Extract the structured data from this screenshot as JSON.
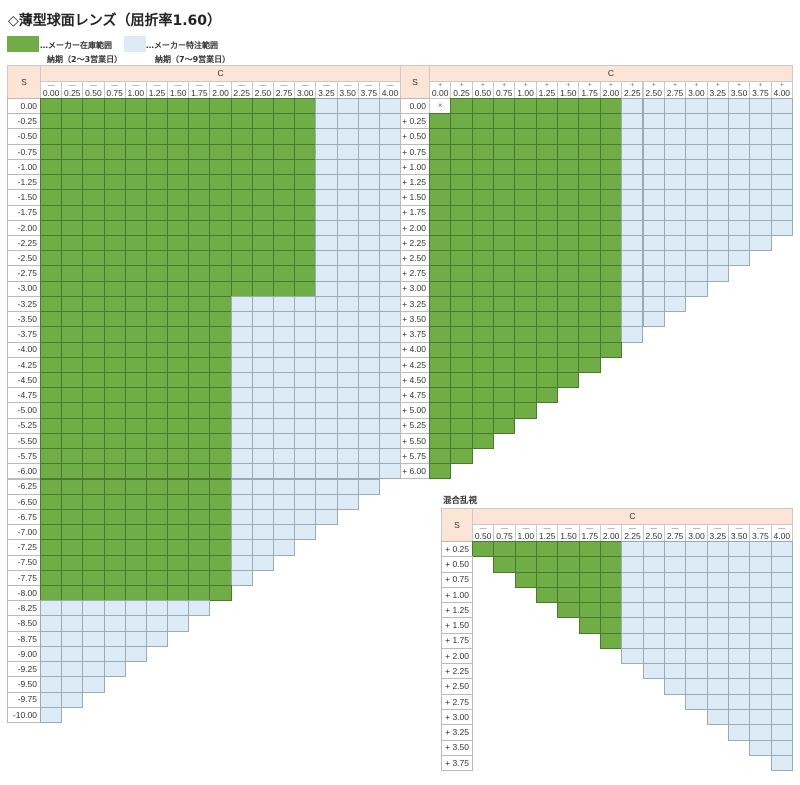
{
  "title": "◇薄型球面レンズ（屈折率1.60）",
  "legend": {
    "stock": {
      "label": "…メーカー在庫範囲",
      "delivery": "納期（2〜3営業日）",
      "color": "#70ad47"
    },
    "order": {
      "label": "…メーカー特注範囲",
      "delivery": "納期（7〜9営業日）",
      "color": "#ddebf7"
    }
  },
  "cell_key": {
    "G": "stock",
    "L": "special-order",
    "X": "×",
    "-": "not available"
  },
  "tables": [
    {
      "id": "minus",
      "s_label": "S",
      "c_label": "C",
      "x_mark": "×",
      "col_sign": "—",
      "cols": [
        "0.00",
        "0.25",
        "0.50",
        "0.75",
        "1.00",
        "1.25",
        "1.50",
        "1.75",
        "2.00",
        "2.25",
        "2.50",
        "2.75",
        "3.00",
        "3.25",
        "3.50",
        "3.75",
        "4.00"
      ],
      "rows": [
        "0.00",
        "-0.25",
        "-0.50",
        "-0.75",
        "-1.00",
        "-1.25",
        "-1.50",
        "-1.75",
        "-2.00",
        "-2.25",
        "-2.50",
        "-2.75",
        "-3.00",
        "-3.25",
        "-3.50",
        "-3.75",
        "-4.00",
        "-4.25",
        "-4.50",
        "-4.75",
        "-5.00",
        "-5.25",
        "-5.50",
        "-5.75",
        "-6.00",
        "-6.25",
        "-6.50",
        "-6.75",
        "-7.00",
        "-7.25",
        "-7.50",
        "-7.75",
        "-8.00",
        "-8.25",
        "-8.50",
        "-8.75",
        "-9.00",
        "-9.25",
        "-9.50",
        "-9.75",
        "-10.00"
      ],
      "cells": [
        "GGGGGGGGGGGGGLLLL",
        "GGGGGGGGGGGGGLLLL",
        "GGGGGGGGGGGGGLLLL",
        "GGGGGGGGGGGGGLLLL",
        "GGGGGGGGGGGGGLLLL",
        "GGGGGGGGGGGGGLLLL",
        "GGGGGGGGGGGGGLLLL",
        "GGGGGGGGGGGGGLLLL",
        "GGGGGGGGGGGGGLLLL",
        "GGGGGGGGGGGGGLLLL",
        "GGGGGGGGGGGGGLLLL",
        "GGGGGGGGGGGGGLLLL",
        "GGGGGGGGGGGGGLLLL",
        "GGGGGGGGGLLLLLLLL",
        "GGGGGGGGGLLLLLLLL",
        "GGGGGGGGGLLLLLLLL",
        "GGGGGGGGGLLLLLLLL",
        "GGGGGGGGGLLLLLLLL",
        "GGGGGGGGGLLLLLLLL",
        "GGGGGGGGGLLLLLLLL",
        "GGGGGGGGGLLLLLLLL",
        "GGGGGGGGGLLLLLLLL",
        "GGGGGGGGGLLLLLLLL",
        "GGGGGGGGGLLLLLLLL",
        "GGGGGGGGGLLLLLLLL",
        "GGGGGGGGGLLLLLLL-",
        "GGGGGGGGGLLLLLL--",
        "GGGGGGGGGLLLLL---",
        "GGGGGGGGGLLLL----",
        "GGGGGGGGGLLL-----",
        "GGGGGGGGGLL------",
        "GGGGGGGGGL-------",
        "GGGGGGGGG--------",
        "LLLLLLLL---------",
        "LLLLLLL----------",
        "LLLLLL-----------",
        "LLLLL------------",
        "LLLL-------------",
        "LLL--------------",
        "LL---------------",
        "L----------------"
      ]
    },
    {
      "id": "plus",
      "s_label": "S",
      "c_label": "C",
      "x_mark": "×",
      "col_sign": "+",
      "cols": [
        "0.00",
        "0.25",
        "0.50",
        "0.75",
        "1.00",
        "1.25",
        "1.50",
        "1.75",
        "2.00",
        "2.25",
        "2.50",
        "2.75",
        "3.00",
        "3.25",
        "3.50",
        "3.75",
        "4.00"
      ],
      "rows": [
        "0.00",
        "+ 0.25",
        "+ 0.50",
        "+ 0.75",
        "+ 1.00",
        "+ 1.25",
        "+ 1.50",
        "+ 1.75",
        "+ 2.00",
        "+ 2.25",
        "+ 2.50",
        "+ 2.75",
        "+ 3.00",
        "+ 3.25",
        "+ 3.50",
        "+ 3.75",
        "+ 4.00",
        "+ 4.25",
        "+ 4.50",
        "+ 4.75",
        "+ 5.00",
        "+ 5.25",
        "+ 5.50",
        "+ 5.75",
        "+ 6.00"
      ],
      "cells": [
        "XGGGGGGGGLLLLLLLL",
        "GGGGGGGGGLLLLLLLL",
        "GGGGGGGGGLLLLLLLL",
        "GGGGGGGGGLLLLLLLL",
        "GGGGGGGGGLLLLLLLL",
        "GGGGGGGGGLLLLLLLL",
        "GGGGGGGGGLLLLLLLL",
        "GGGGGGGGGLLLLLLLL",
        "GGGGGGGGGLLLLLLLL",
        "GGGGGGGGGLLLLLLL-",
        "GGGGGGGGGLLLLLL--",
        "GGGGGGGGGLLLLL---",
        "GGGGGGGGGLLLL----",
        "GGGGGGGGGLLL-----",
        "GGGGGGGGGLL------",
        "GGGGGGGGGL-------",
        "GGGGGGGGG--------",
        "GGGGGGGG---------",
        "GGGGGGG----------",
        "GGGGGG-----------",
        "GGGGG------------",
        "GGGG-------------",
        "GGG--------------",
        "GG---------------",
        "G----------------"
      ]
    },
    {
      "id": "mixed",
      "heading": "混合乱視",
      "s_label": "S",
      "c_label": "C",
      "x_mark": "×",
      "col_sign": "—",
      "cols": [
        "0.50",
        "0.75",
        "1.00",
        "1.25",
        "1.50",
        "1.75",
        "2.00",
        "2.25",
        "2.50",
        "2.75",
        "3.00",
        "3.25",
        "3.50",
        "3.75",
        "4.00"
      ],
      "rows": [
        "+ 0.25",
        "+ 0.50",
        "+ 0.75",
        "+ 1.00",
        "+ 1.25",
        "+ 1.50",
        "+ 1.75",
        "+ 2.00",
        "+ 2.25",
        "+ 2.50",
        "+ 2.75",
        "+ 3.00",
        "+ 3.25",
        "+ 3.50",
        "+ 3.75"
      ],
      "cells": [
        "GGGGGGGLLLLLLLL",
        "-GGGGGGLLLLLLLL",
        "--GGGGGLLLLLLLL",
        "---GGGGLLLLLLLL",
        "----GGGLLLLLLLL",
        "-----GGLLLLLLLL",
        "------GLLLLLLLL",
        "-------LLLLLLLL",
        "--------LLLLLLL",
        "---------LLLLLL",
        "----------LLLLL",
        "-----------LLLL",
        "------------LLL",
        "-------------LL",
        "--------------L"
      ]
    }
  ]
}
